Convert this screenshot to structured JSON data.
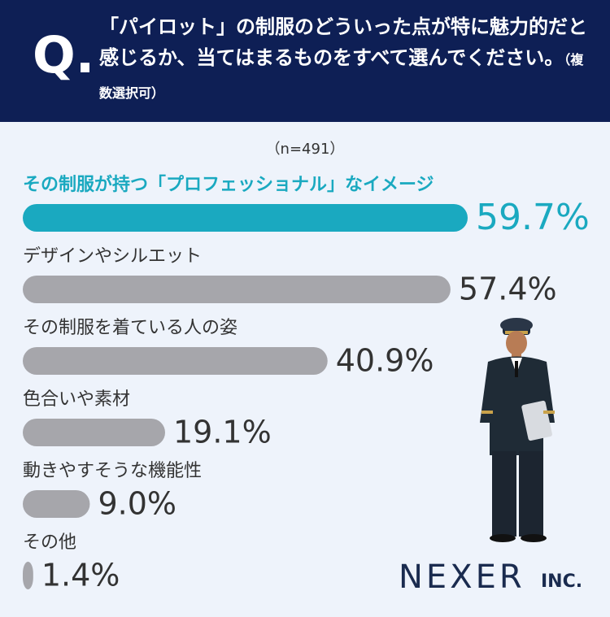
{
  "chart_data": {
    "type": "hbar",
    "question_mark": "Q.",
    "title": "「パイロット」の制服のどういった点が特に魅力的だと感じるか、当てはまるものをすべて選んでください。",
    "title_note": "（複数選択可）",
    "subtitle": "（n=491）",
    "categories": [
      "その制服が持つ「プロフェッショナル」なイメージ",
      "デザインやシルエット",
      "その制服を着ている人の姿",
      "色合いや素材",
      "動きやすそうな機能性",
      "その他"
    ],
    "values": [
      59.7,
      57.4,
      40.9,
      19.1,
      9.0,
      1.4
    ],
    "value_labels": [
      "59.7%",
      "57.4%",
      "40.9%",
      "19.1%",
      "9.0%",
      "1.4%"
    ],
    "colors": [
      "#1aa9c0",
      "#a6a6ab",
      "#a6a6ab",
      "#a6a6ab",
      "#a6a6ab",
      "#a6a6ab"
    ],
    "logo": "NEXER",
    "logo_suffix": "INC."
  }
}
